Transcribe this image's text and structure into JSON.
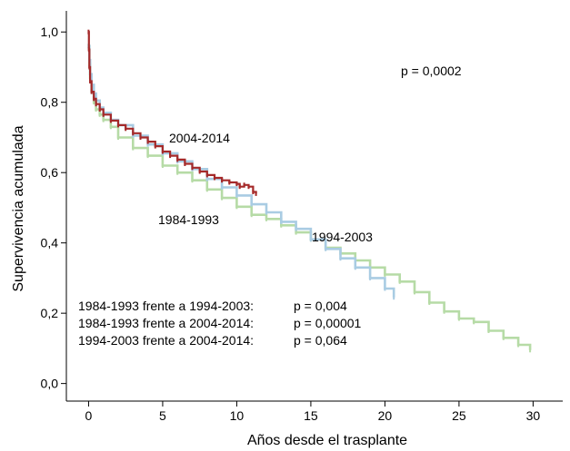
{
  "chart_data": {
    "type": "line",
    "xlabel": "Años desde el trasplante",
    "ylabel": "Supervivencia acumulada",
    "xlim": [
      -1.5,
      32
    ],
    "ylim": [
      -0.05,
      1.06
    ],
    "xticks": [
      {
        "value": 0,
        "label": "0"
      },
      {
        "value": 5,
        "label": "5"
      },
      {
        "value": 10,
        "label": "10"
      },
      {
        "value": 15,
        "label": "15"
      },
      {
        "value": 20,
        "label": "20"
      },
      {
        "value": 25,
        "label": "25"
      },
      {
        "value": 30,
        "label": "30"
      }
    ],
    "yticks": [
      {
        "value": 0.0,
        "label": "0,0"
      },
      {
        "value": 0.2,
        "label": "0,2"
      },
      {
        "value": 0.4,
        "label": "0,4"
      },
      {
        "value": 0.6,
        "label": "0,6"
      },
      {
        "value": 0.8,
        "label": "0,8"
      },
      {
        "value": 1.0,
        "label": "1,0"
      }
    ],
    "grid": false,
    "series": [
      {
        "name": "1984-1993",
        "color": "#b6dba6",
        "x": [
          0,
          0.05,
          0.1,
          0.2,
          0.35,
          0.5,
          0.75,
          1,
          1.5,
          2,
          3,
          4,
          5,
          6,
          7,
          8,
          9,
          10,
          11,
          12,
          13,
          14,
          15,
          16,
          17,
          18,
          19,
          20,
          21,
          22,
          23,
          24,
          25,
          26,
          27,
          28,
          29,
          29.8
        ],
        "y": [
          0.96,
          0.91,
          0.87,
          0.83,
          0.8,
          0.78,
          0.765,
          0.75,
          0.73,
          0.7,
          0.67,
          0.648,
          0.62,
          0.6,
          0.578,
          0.552,
          0.528,
          0.503,
          0.48,
          0.468,
          0.45,
          0.43,
          0.41,
          0.386,
          0.37,
          0.35,
          0.33,
          0.31,
          0.29,
          0.26,
          0.23,
          0.205,
          0.185,
          0.175,
          0.15,
          0.13,
          0.11,
          0.095
        ]
      },
      {
        "name": "1994-2003",
        "color": "#a9cce3",
        "x": [
          0,
          0.05,
          0.1,
          0.2,
          0.35,
          0.5,
          0.75,
          1,
          1.5,
          2,
          3,
          4,
          5,
          6,
          7,
          8,
          9,
          10,
          11,
          12,
          13,
          14,
          15,
          16,
          17,
          18,
          19,
          20,
          20.6
        ],
        "y": [
          0.96,
          0.92,
          0.88,
          0.85,
          0.825,
          0.805,
          0.785,
          0.77,
          0.75,
          0.735,
          0.705,
          0.68,
          0.655,
          0.632,
          0.61,
          0.582,
          0.558,
          0.535,
          0.51,
          0.487,
          0.46,
          0.44,
          0.41,
          0.383,
          0.356,
          0.33,
          0.3,
          0.27,
          0.245
        ]
      },
      {
        "name": "2004-2014",
        "color": "#a52a2a",
        "x": [
          0,
          0.02,
          0.05,
          0.1,
          0.2,
          0.35,
          0.5,
          0.75,
          1,
          1.5,
          2,
          2.5,
          3,
          3.5,
          4,
          4.5,
          5,
          5.5,
          6,
          6.5,
          7,
          7.5,
          8,
          8.5,
          9,
          9.5,
          10,
          10.2,
          10.5,
          10.8,
          11.1,
          11.3
        ],
        "y": [
          1.0,
          0.95,
          0.9,
          0.86,
          0.83,
          0.81,
          0.795,
          0.78,
          0.765,
          0.748,
          0.735,
          0.725,
          0.712,
          0.7,
          0.688,
          0.675,
          0.66,
          0.648,
          0.637,
          0.625,
          0.614,
          0.603,
          0.593,
          0.585,
          0.578,
          0.572,
          0.568,
          0.56,
          0.565,
          0.56,
          0.545,
          0.54
        ]
      }
    ],
    "annotations": {
      "p_global": "p = 0,0002",
      "label_2004": "2004-2014",
      "label_1984": "1984-1993",
      "label_1994": "1994-2003",
      "comparisons": [
        {
          "pair": "1984-1993 frente a 1994-2003:",
          "p": "p = 0,004"
        },
        {
          "pair": "1984-1993 frente a 2004-2014:",
          "p": "p = 0,00001"
        },
        {
          "pair": "1994-2003 frente a 2004-2014:",
          "p": "p = 0,064"
        }
      ]
    }
  }
}
